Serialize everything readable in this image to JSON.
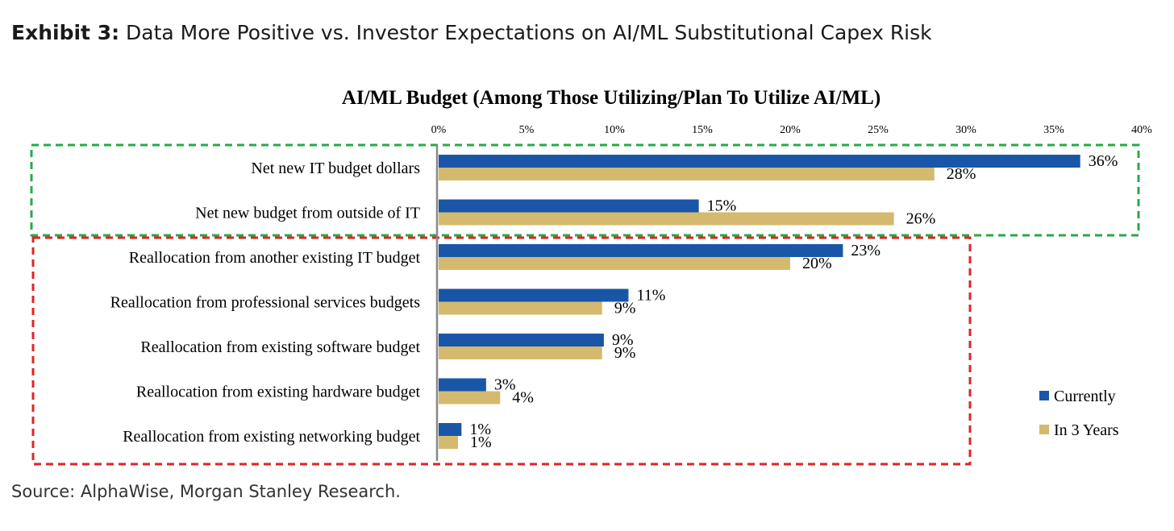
{
  "exhibit": {
    "label": "Exhibit 3:",
    "text": "Data More Positive vs. Investor Expectations on AI/ML Substitutional Capex Risk"
  },
  "source": "Source: AlphaWise, Morgan Stanley Research.",
  "colors": {
    "currently": "#1a56a8",
    "in3years": "#d4ba6e",
    "green_box": "#2aa84a",
    "red_box": "#e02424"
  },
  "chart_data": {
    "type": "bar",
    "orientation": "horizontal",
    "title": "AI/ML Budget (Among Those Utilizing/Plan To Utilize AI/ML)",
    "xlim": [
      0,
      40
    ],
    "x_ticks": [
      0,
      5,
      10,
      15,
      20,
      25,
      30,
      35,
      40
    ],
    "x_tick_labels": [
      "0%",
      "5%",
      "10%",
      "15%",
      "20%",
      "25%",
      "30%",
      "35%",
      "40%"
    ],
    "grid": false,
    "legend_position": "bottom-right",
    "categories": [
      "Net new IT budget dollars",
      "Net new budget from outside of IT",
      "Reallocation from another existing IT budget",
      "Reallocation from professional services budgets",
      "Reallocation from existing software budget",
      "Reallocation from existing hardware budget",
      "Reallocation from existing networking budget"
    ],
    "series": [
      {
        "name": "Currently",
        "values": [
          36.5,
          14.8,
          23,
          10.8,
          9.4,
          2.7,
          1.3
        ],
        "labels": [
          "36%",
          "15%",
          "23%",
          "11%",
          "9%",
          "3%",
          "1%"
        ]
      },
      {
        "name": "In 3 Years",
        "values": [
          28.2,
          25.9,
          20,
          9.3,
          9.3,
          3.5,
          1.1
        ],
        "labels": [
          "28%",
          "26%",
          "20%",
          "9%",
          "9%",
          "4%",
          "1%"
        ]
      }
    ]
  }
}
